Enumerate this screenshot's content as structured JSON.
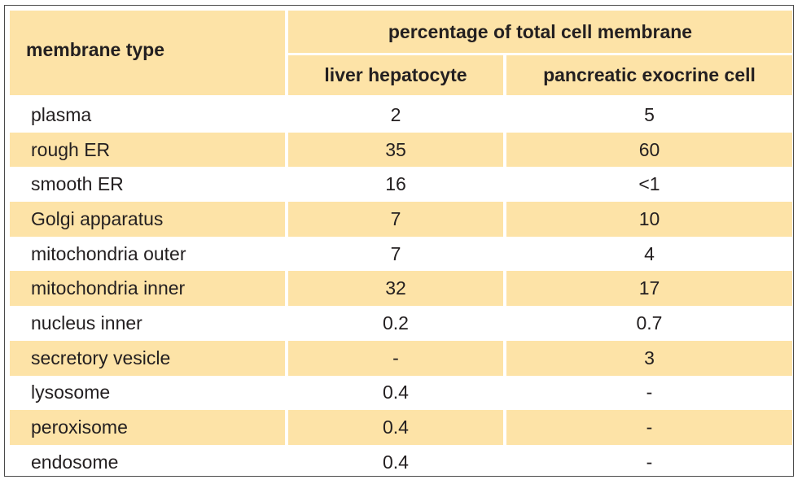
{
  "table": {
    "headers": {
      "membrane_type": "membrane type",
      "group": "percentage of total cell membrane",
      "liver": "liver hepatocyte",
      "pancreas": "pancreatic exocrine cell"
    },
    "rows": [
      {
        "type": "plasma",
        "liver": "2",
        "pancreas": "5"
      },
      {
        "type": "rough ER",
        "liver": "35",
        "pancreas": "60"
      },
      {
        "type": "smooth ER",
        "liver": "16",
        "pancreas": "<1"
      },
      {
        "type": "Golgi apparatus",
        "liver": "7",
        "pancreas": "10"
      },
      {
        "type": "mitochondria outer",
        "liver": "7",
        "pancreas": "4"
      },
      {
        "type": "mitochondria inner",
        "liver": "32",
        "pancreas": "17"
      },
      {
        "type": "nucleus inner",
        "liver": "0.2",
        "pancreas": "0.7"
      },
      {
        "type": "secretory vesicle",
        "liver": "-",
        "pancreas": "3"
      },
      {
        "type": "lysosome",
        "liver": "0.4",
        "pancreas": "-"
      },
      {
        "type": "peroxisome",
        "liver": "0.4",
        "pancreas": "-"
      },
      {
        "type": "endosome",
        "liver": "0.4",
        "pancreas": "-"
      }
    ],
    "colors": {
      "header_fill": "#fde3a7",
      "stripe_fill": "#fde3a7",
      "text": "#231f20",
      "border": "#4a4a4a"
    }
  }
}
